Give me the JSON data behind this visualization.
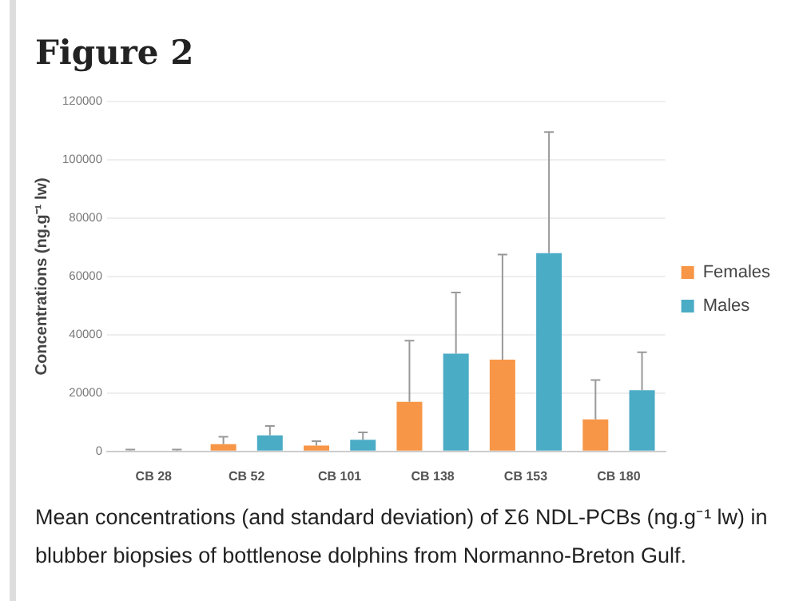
{
  "chart_data": {
    "type": "bar",
    "title": "Figure 2",
    "ylabel": "Concentrations (ng.g⁻¹ lw)",
    "categories": [
      "CB 28",
      "CB 52",
      "CB 101",
      "CB 138",
      "CB 153",
      "CB 180"
    ],
    "series": [
      {
        "name": "Females",
        "color": "#f79646",
        "values": [
          300,
          2500,
          2000,
          17000,
          31500,
          11000
        ],
        "errors": [
          [
            300,
            600
          ],
          [
            2500,
            5000
          ],
          [
            2000,
            3500
          ],
          [
            17000,
            38000
          ],
          [
            31500,
            67500
          ],
          [
            11000,
            24500
          ]
        ]
      },
      {
        "name": "Males",
        "color": "#4bacc6",
        "values": [
          300,
          5500,
          4000,
          33500,
          68000,
          21000
        ],
        "errors": [
          [
            300,
            600
          ],
          [
            5500,
            8700
          ],
          [
            4000,
            6500
          ],
          [
            33500,
            54500
          ],
          [
            68000,
            109500
          ],
          [
            21000,
            34000
          ]
        ]
      }
    ],
    "ylim": [
      0,
      120000
    ],
    "yticks": [
      0,
      20000,
      40000,
      60000,
      80000,
      100000,
      120000
    ],
    "grid": "y",
    "legend": "right",
    "annotations": [
      "Mean concentrations (and standard deviation) of Σ6 NDL-PCBs (ng.g⁻¹ lw) in blubber biopsies of bottlenose dolphins from Normanno-Breton Gulf."
    ]
  }
}
